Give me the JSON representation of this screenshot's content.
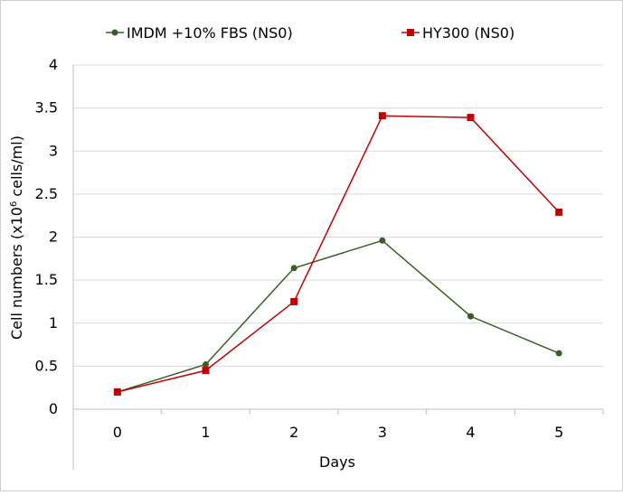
{
  "chart_data": {
    "type": "line",
    "title": "",
    "xlabel": "Days",
    "ylabel_main": "Cell numbers (x10",
    "ylabel_sup": "6",
    "ylabel_tail": " cells/ml)",
    "x": [
      0,
      1,
      2,
      3,
      4,
      5
    ],
    "x_tick_labels": [
      "0",
      "1",
      "2",
      "3",
      "4",
      "5"
    ],
    "y_tick_labels": [
      "0",
      "0.5",
      "1",
      "1.5",
      "2",
      "2.5",
      "3",
      "3.5",
      "4"
    ],
    "ylim": [
      0,
      4
    ],
    "grid": true,
    "legend_position": "top",
    "series": [
      {
        "name": "IMDM +10% FBS (NS0)",
        "color": "#3a5f26",
        "marker": "circle",
        "values": [
          0.2,
          0.52,
          1.64,
          1.96,
          1.08,
          0.65
        ]
      },
      {
        "name": "HY300 (NS0)",
        "color": "#c00000",
        "marker": "square",
        "values": [
          0.2,
          0.45,
          1.25,
          3.41,
          3.39,
          2.29
        ]
      }
    ]
  }
}
